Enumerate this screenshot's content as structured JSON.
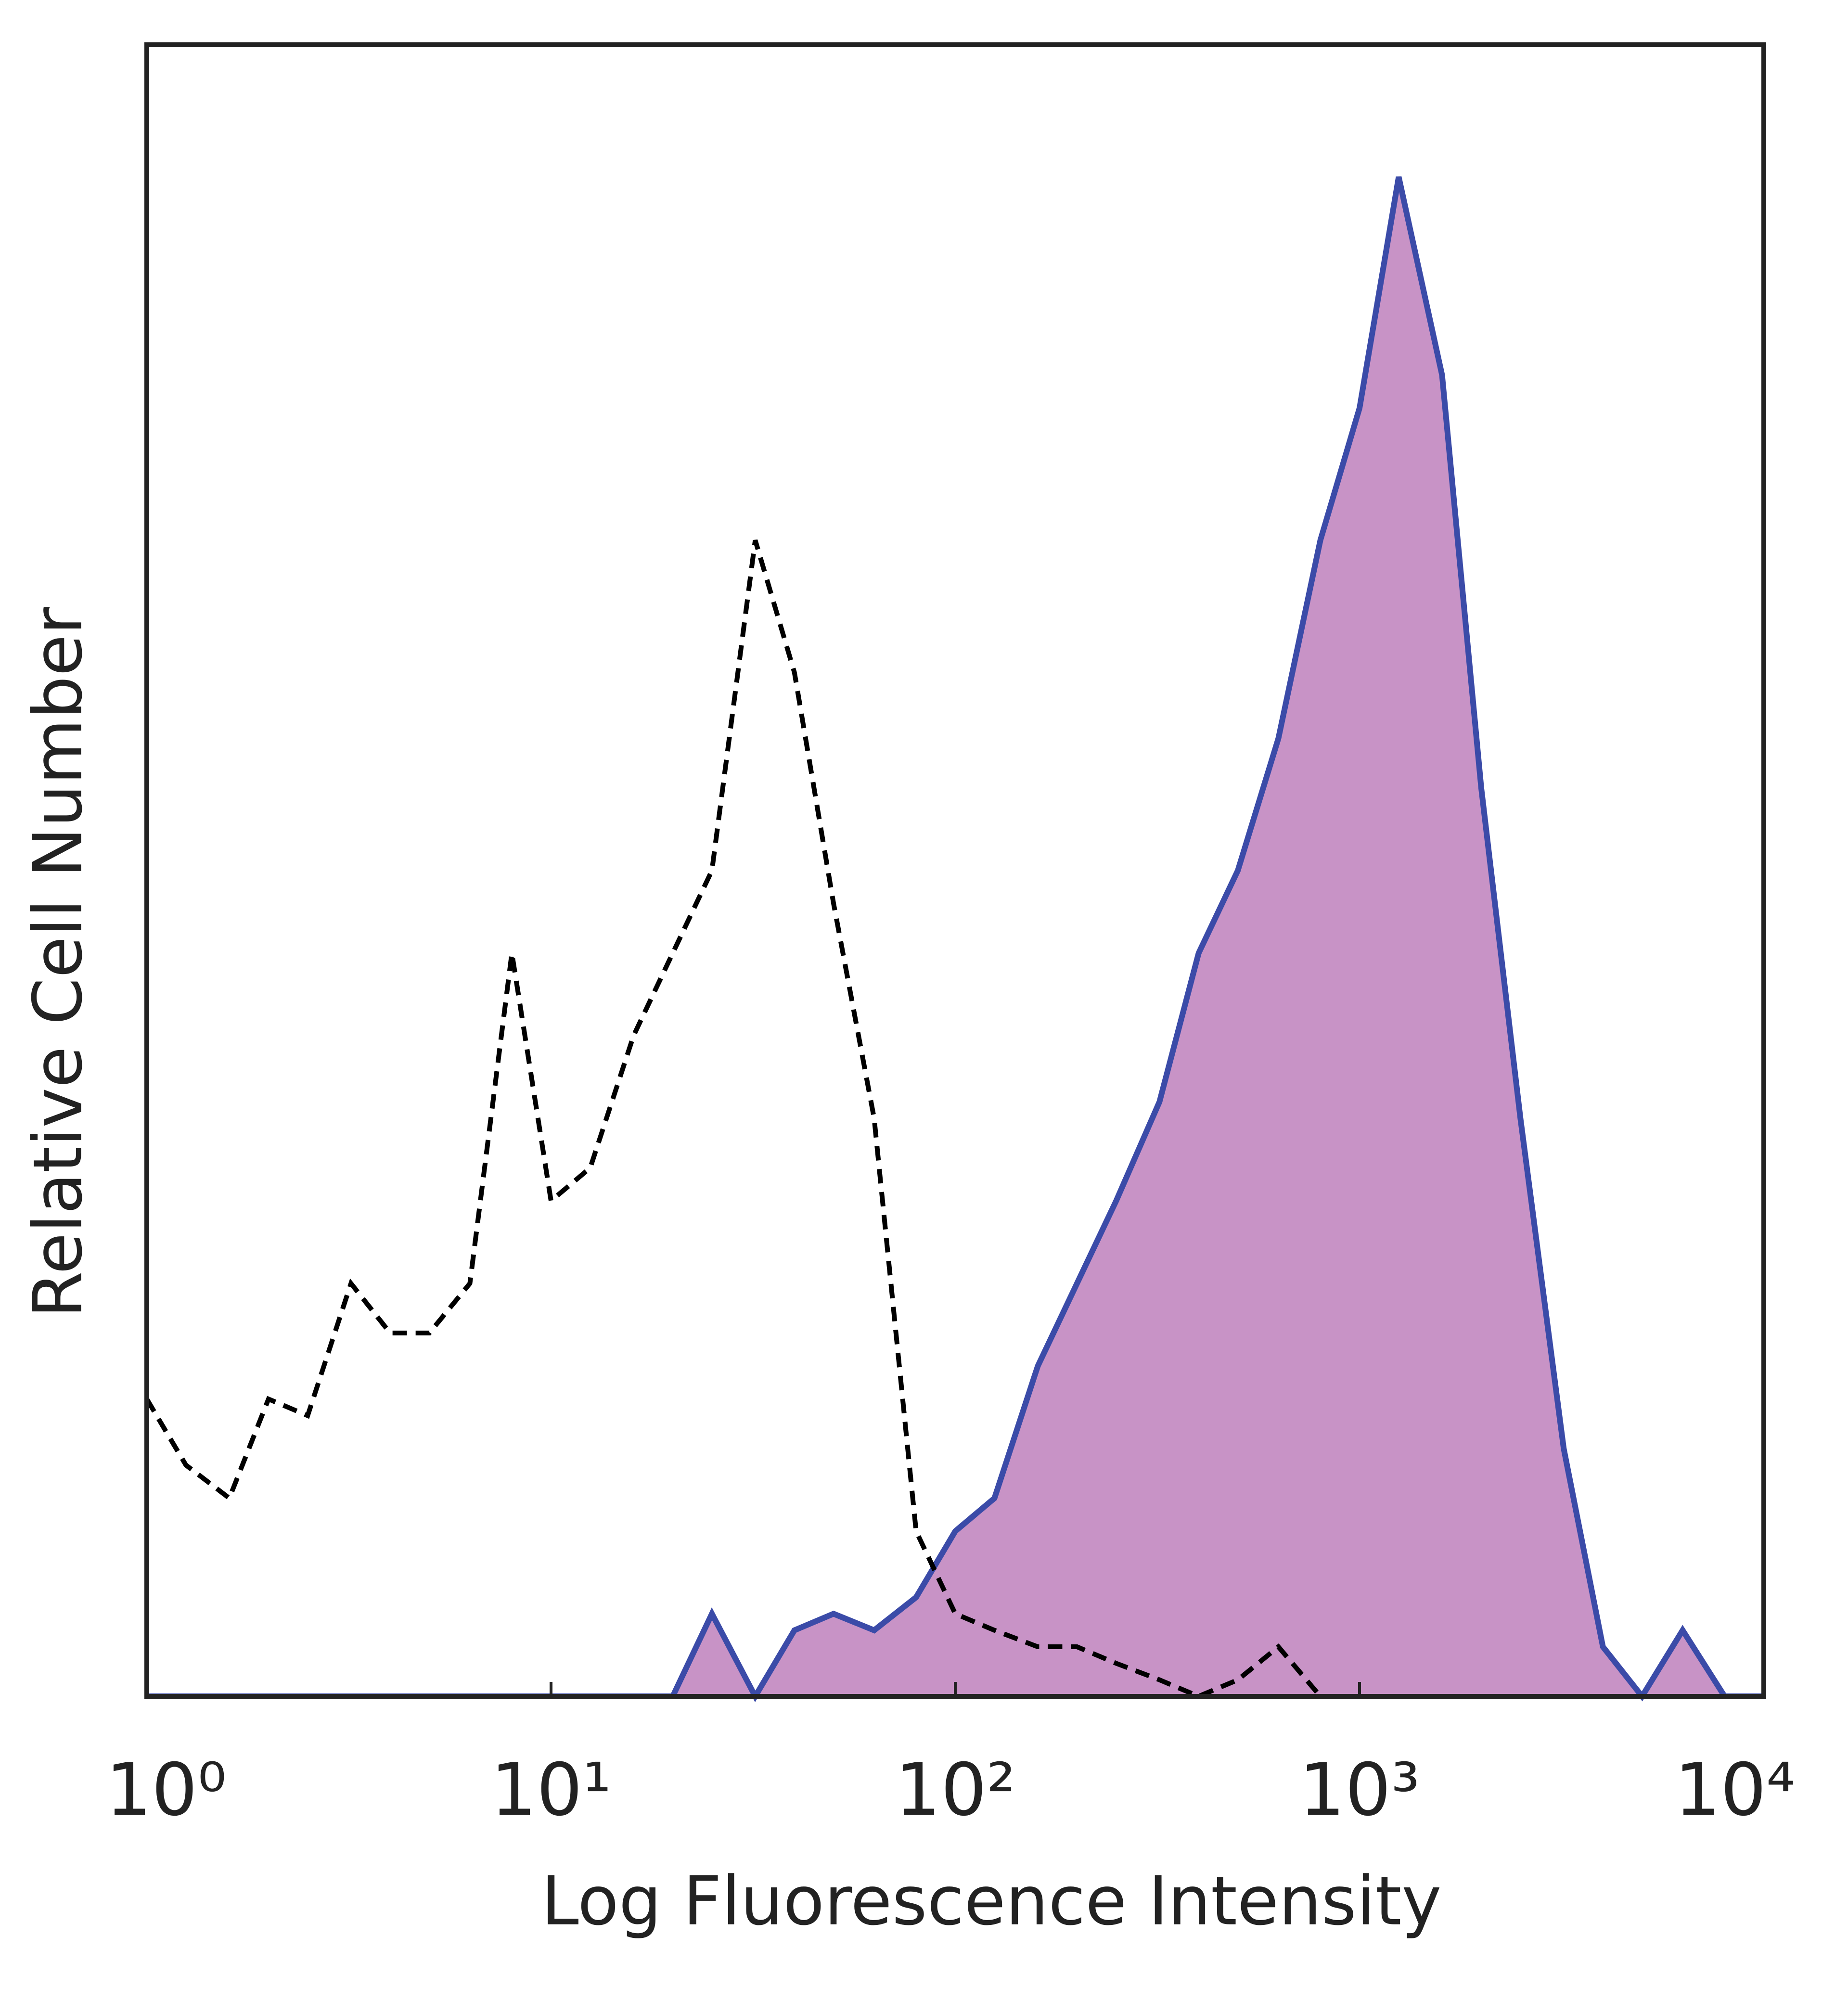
{
  "chart_data": {
    "type": "line",
    "x_label": "Log Fluorescence Intensity",
    "y_label": "Relative Cell Number",
    "x": [
      1,
      1.25,
      1.6,
      2,
      2.5,
      3.2,
      4,
      5,
      6.3,
      8,
      10,
      12.5,
      16,
      20,
      25,
      32,
      40,
      50,
      63,
      80,
      100,
      125,
      160,
      200,
      250,
      320,
      400,
      500,
      630,
      800,
      1000,
      1250,
      1600,
      2000,
      2500,
      3200,
      4000,
      5000,
      6300,
      8000,
      10000
    ],
    "series": [
      {
        "color": "#3b4ba8",
        "fill": "#c893c6",
        "filled": true,
        "dashed": false,
        "values": [
          0,
          0,
          0,
          0,
          0,
          0,
          0,
          0,
          0,
          0,
          0,
          0,
          0,
          0,
          5,
          0,
          4,
          5,
          4,
          6,
          10,
          12,
          20,
          25,
          30,
          36,
          45,
          50,
          58,
          70,
          78,
          92,
          80,
          55,
          35,
          15,
          3,
          0,
          4,
          0,
          0
        ]
      },
      {
        "color": "#000000",
        "filled": false,
        "dashed": true,
        "values": [
          18,
          14,
          12,
          18,
          17,
          25,
          22,
          22,
          25,
          45,
          30,
          32,
          40,
          45,
          50,
          70,
          62,
          48,
          35,
          10,
          5,
          4,
          3,
          3,
          2,
          1,
          0,
          1,
          3,
          0,
          0,
          0,
          0,
          0,
          0,
          0,
          0,
          0,
          0,
          0,
          0
        ]
      }
    ],
    "xscale": "log",
    "xlim": [
      1,
      10000
    ],
    "xticks": [
      {
        "value": 1,
        "label": "10⁰"
      },
      {
        "value": 10,
        "label": "10¹"
      },
      {
        "value": 100,
        "label": "10²"
      },
      {
        "value": 1000,
        "label": "10³"
      },
      {
        "value": 10000,
        "label": "10⁴"
      }
    ],
    "ylim": [
      0,
      100
    ],
    "grid": false
  }
}
